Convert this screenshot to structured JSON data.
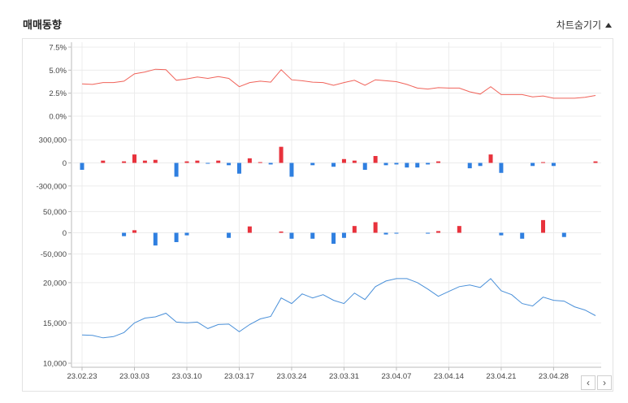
{
  "header": {
    "title": "매매동향",
    "toggle_label": "차트숨기기",
    "toggle_icon": "triangle-up-icon"
  },
  "nav": {
    "prev_label": "‹",
    "next_label": "›"
  },
  "colors": {
    "red": "#e8323c",
    "blue": "#2f7fe0",
    "grid": "#ececec",
    "axis": "#bbbbbb"
  },
  "chart_data": [
    {
      "type": "line",
      "ylim": [
        0,
        7.5
      ],
      "y_ticks": [
        "7.5%",
        "5.0%",
        "2.5%",
        "0.0%"
      ],
      "y_tick_values": [
        7.5,
        5.0,
        2.5,
        0.0
      ],
      "color": "#f0635a",
      "values": [
        3.5,
        3.45,
        3.65,
        3.65,
        3.8,
        4.6,
        4.8,
        5.1,
        5.05,
        3.9,
        4.05,
        4.25,
        4.1,
        4.3,
        4.1,
        3.2,
        3.65,
        3.8,
        3.7,
        5.05,
        3.95,
        3.85,
        3.7,
        3.65,
        3.35,
        3.65,
        3.9,
        3.35,
        3.95,
        3.85,
        3.75,
        3.45,
        3.05,
        2.95,
        3.1,
        3.05,
        3.05,
        2.65,
        2.4,
        3.2,
        2.35,
        2.35,
        2.35,
        2.1,
        2.2,
        1.95,
        1.95,
        1.95,
        2.05,
        2.25
      ]
    },
    {
      "type": "bar",
      "ylim": [
        -450000,
        450000
      ],
      "y_ticks": [
        "300,000",
        "0",
        "-300,000"
      ],
      "y_tick_values": [
        300000,
        0,
        -300000
      ],
      "values": [
        -90000,
        0,
        30000,
        0,
        20000,
        110000,
        30000,
        40000,
        0,
        -180000,
        20000,
        30000,
        -10000,
        30000,
        -30000,
        -140000,
        60000,
        10000,
        -20000,
        210000,
        -180000,
        0,
        -30000,
        0,
        -50000,
        50000,
        30000,
        -90000,
        90000,
        -30000,
        -20000,
        -60000,
        -60000,
        -20000,
        20000,
        0,
        0,
        -70000,
        -40000,
        110000,
        -130000,
        0,
        0,
        -40000,
        10000,
        -40000,
        0,
        0,
        0,
        20000
      ]
    },
    {
      "type": "bar",
      "ylim": [
        -70000,
        70000
      ],
      "y_ticks": [
        "50,000",
        "0",
        "-50,000"
      ],
      "y_tick_values": [
        50000,
        0,
        -50000
      ],
      "values": [
        0,
        0,
        0,
        0,
        -8000,
        6000,
        0,
        -30000,
        0,
        -22000,
        -6000,
        0,
        0,
        0,
        -12000,
        0,
        15000,
        0,
        0,
        3000,
        -14000,
        0,
        -14000,
        0,
        -26000,
        -12000,
        16000,
        0,
        25000,
        -4000,
        -2000,
        0,
        0,
        -2000,
        4000,
        0,
        16000,
        0,
        0,
        0,
        -6000,
        0,
        -14000,
        0,
        30000,
        0,
        -10000,
        0,
        0,
        0
      ]
    },
    {
      "type": "line",
      "ylim": [
        10000,
        22000
      ],
      "y_ticks": [
        "20,000",
        "15,000",
        "10,000"
      ],
      "y_tick_values": [
        20000,
        15000,
        10000
      ],
      "color": "#4a90d9",
      "values": [
        13500,
        13450,
        13150,
        13300,
        13800,
        15000,
        15600,
        15750,
        16200,
        15100,
        15000,
        15100,
        14300,
        14800,
        14850,
        13900,
        14800,
        15500,
        15800,
        18100,
        17400,
        18600,
        18100,
        18500,
        17800,
        17400,
        18700,
        17900,
        19500,
        20200,
        20500,
        20500,
        20000,
        19200,
        18300,
        18900,
        19500,
        19700,
        19400,
        20500,
        19000,
        18500,
        17400,
        17100,
        18200,
        17800,
        17700,
        17000,
        16600,
        15900
      ]
    }
  ],
  "x_axis": {
    "ticks": [
      "23.02.23",
      "23.03.03",
      "23.03.10",
      "23.03.17",
      "23.03.24",
      "23.03.31",
      "23.04.07",
      "23.04.14",
      "23.04.21",
      "23.04.28"
    ],
    "tick_index": [
      0,
      5,
      10,
      15,
      20,
      25,
      30,
      35,
      40,
      45
    ]
  }
}
